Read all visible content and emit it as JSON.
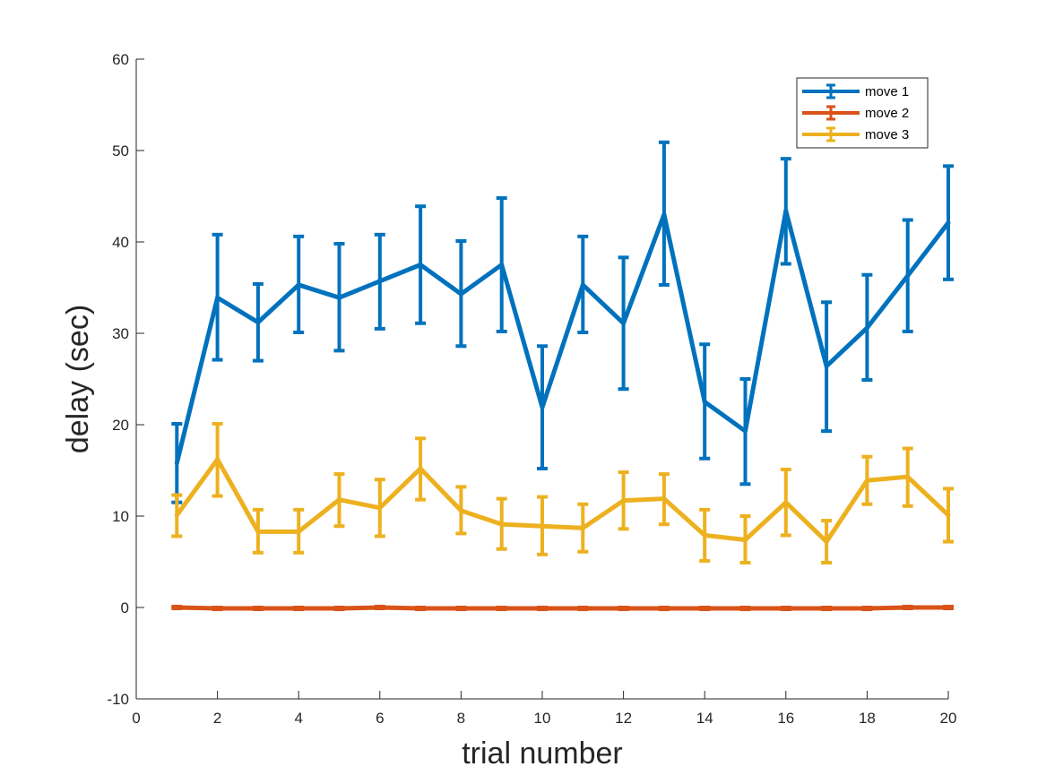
{
  "chart_data": {
    "type": "line",
    "title": "",
    "xlabel": "trial number",
    "ylabel": "delay (sec)",
    "xlim": [
      0,
      20
    ],
    "ylim": [
      -10,
      60
    ],
    "xticks": [
      0,
      2,
      4,
      6,
      8,
      10,
      12,
      14,
      16,
      18,
      20
    ],
    "yticks": [
      -10,
      0,
      10,
      20,
      30,
      40,
      50,
      60
    ],
    "grid": false,
    "legend_position": "top-right",
    "error_bars": true,
    "x": [
      1,
      2,
      3,
      4,
      5,
      6,
      7,
      8,
      9,
      10,
      11,
      12,
      13,
      14,
      15,
      16,
      17,
      18,
      19,
      20
    ],
    "series": [
      {
        "name": "move 1",
        "color": "#0072BD",
        "values": [
          15.8,
          33.9,
          31.2,
          35.3,
          33.9,
          35.7,
          37.5,
          34.3,
          37.5,
          21.9,
          35.3,
          31.1,
          43.0,
          22.5,
          19.3,
          43.4,
          26.4,
          30.6,
          36.3,
          42.1
        ],
        "upper": [
          20.1,
          40.8,
          35.4,
          40.6,
          39.8,
          40.8,
          43.9,
          40.1,
          44.8,
          28.6,
          40.6,
          38.3,
          50.9,
          28.8,
          25.0,
          49.1,
          33.4,
          36.4,
          42.4,
          48.3
        ],
        "lower": [
          11.5,
          27.1,
          27.0,
          30.1,
          28.1,
          30.5,
          31.1,
          28.6,
          30.2,
          15.2,
          30.1,
          23.9,
          35.3,
          16.3,
          13.5,
          37.6,
          19.3,
          24.9,
          30.2,
          35.9
        ]
      },
      {
        "name": "move 2",
        "color": "#D95319",
        "values": [
          0.0,
          -0.1,
          -0.1,
          -0.1,
          -0.1,
          0.0,
          -0.1,
          -0.1,
          -0.1,
          -0.1,
          -0.1,
          -0.1,
          -0.1,
          -0.1,
          -0.1,
          -0.1,
          -0.1,
          -0.1,
          0.0,
          0.0
        ],
        "upper": [
          0.1,
          0.0,
          0.0,
          0.0,
          0.0,
          0.1,
          0.0,
          0.0,
          0.0,
          0.0,
          0.0,
          0.0,
          0.0,
          0.0,
          0.0,
          0.0,
          0.0,
          0.0,
          0.1,
          0.1
        ],
        "lower": [
          -0.1,
          -0.2,
          -0.2,
          -0.2,
          -0.2,
          -0.1,
          -0.2,
          -0.2,
          -0.2,
          -0.2,
          -0.2,
          -0.2,
          -0.2,
          -0.2,
          -0.2,
          -0.2,
          -0.2,
          -0.2,
          -0.1,
          -0.1
        ]
      },
      {
        "name": "move 3",
        "color": "#EDB120",
        "values": [
          10.1,
          16.2,
          8.3,
          8.3,
          11.8,
          10.9,
          15.2,
          10.6,
          9.1,
          8.9,
          8.7,
          11.7,
          11.9,
          7.9,
          7.4,
          11.5,
          7.2,
          13.9,
          14.3,
          10.1
        ],
        "upper": [
          12.3,
          20.1,
          10.7,
          10.7,
          14.6,
          14.0,
          18.5,
          13.2,
          11.9,
          12.1,
          11.3,
          14.8,
          14.6,
          10.7,
          10.0,
          15.1,
          9.5,
          16.5,
          17.4,
          13.0
        ],
        "lower": [
          7.8,
          12.2,
          6.0,
          6.0,
          8.9,
          7.8,
          11.8,
          8.1,
          6.4,
          5.8,
          6.1,
          8.6,
          9.1,
          5.1,
          4.9,
          7.9,
          4.9,
          11.3,
          11.1,
          7.2
        ]
      }
    ]
  }
}
